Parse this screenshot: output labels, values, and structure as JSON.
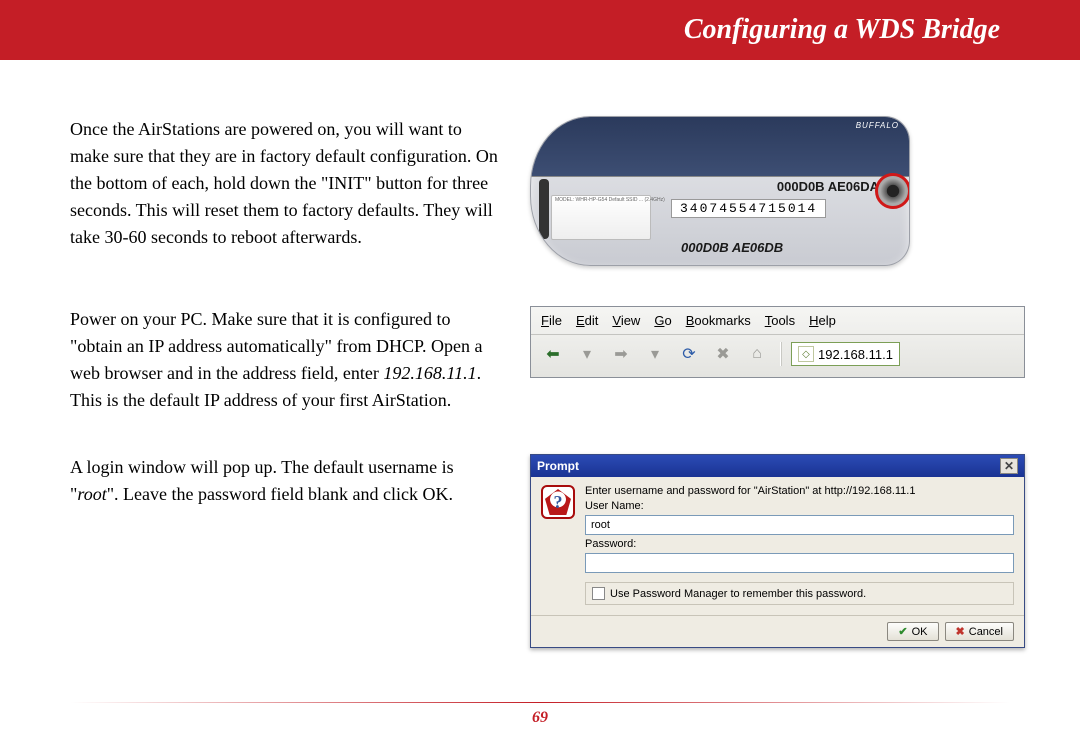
{
  "header": {
    "title": "Configuring a WDS Bridge"
  },
  "para1": "Once the AirStations are powered on, you will want to make sure that they are in factory default configuration.  On the bottom of each, hold down the \"INIT\" button for three seconds.  This will reset them to factory defaults.  They will take 30-60 seconds to reboot afterwards.",
  "para2_a": "Power on your PC.  Make sure that it is configured to \"obtain an IP address automatically\" from DHCP.  Open a web browser and in the address field, enter ",
  "para2_ital": "192.168.11.1",
  "para2_b": ".  This is the default IP address of your first AirStation.",
  "para3_a": "A login window will pop up.  The default username is \"",
  "para3_ital": "root",
  "para3_b": "\".  Leave the password field blank and click OK.",
  "device": {
    "brand": "BUFFALO",
    "mac1": "000D0B AE06DA",
    "serial": "34074554715014",
    "mac2": "000D0B AE06DB",
    "label_small": "MODEL: WHR-HP-G54   Default SSID ... (2.4GHz)"
  },
  "browser": {
    "menu": {
      "file": "File",
      "edit": "Edit",
      "view": "View",
      "go": "Go",
      "bookmarks": "Bookmarks",
      "tools": "Tools",
      "help": "Help"
    },
    "address": "192.168.11.1"
  },
  "prompt": {
    "title": "Prompt",
    "message": "Enter username and password for \"AirStation\" at http://192.168.11.1",
    "username_label": "User Name:",
    "username_value": "root",
    "password_label": "Password:",
    "password_value": "",
    "remember_label": "Use Password Manager to remember this password.",
    "ok_label": "OK",
    "cancel_label": "Cancel"
  },
  "page_number": "69",
  "colors": {
    "brand_red": "#c41e26"
  }
}
